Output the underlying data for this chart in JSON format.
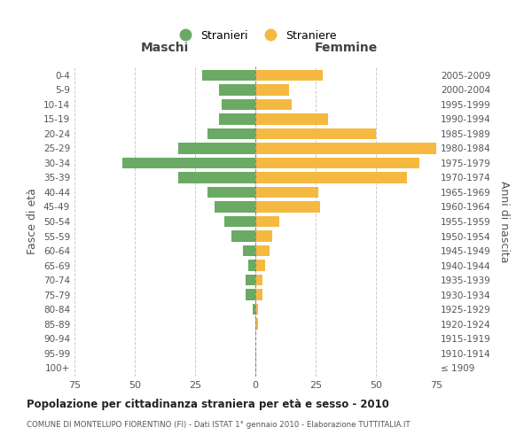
{
  "age_groups": [
    "100+",
    "95-99",
    "90-94",
    "85-89",
    "80-84",
    "75-79",
    "70-74",
    "65-69",
    "60-64",
    "55-59",
    "50-54",
    "45-49",
    "40-44",
    "35-39",
    "30-34",
    "25-29",
    "20-24",
    "15-19",
    "10-14",
    "5-9",
    "0-4"
  ],
  "birth_years": [
    "≤ 1909",
    "1910-1914",
    "1915-1919",
    "1920-1924",
    "1925-1929",
    "1930-1934",
    "1935-1939",
    "1940-1944",
    "1945-1949",
    "1950-1954",
    "1955-1959",
    "1960-1964",
    "1965-1969",
    "1970-1974",
    "1975-1979",
    "1980-1984",
    "1985-1989",
    "1990-1994",
    "1995-1999",
    "2000-2004",
    "2005-2009"
  ],
  "maschi": [
    0,
    0,
    0,
    0,
    1,
    4,
    4,
    3,
    5,
    10,
    13,
    17,
    20,
    32,
    55,
    32,
    20,
    15,
    14,
    15,
    22
  ],
  "femmine": [
    0,
    0,
    0,
    1,
    1,
    3,
    3,
    4,
    6,
    7,
    10,
    27,
    26,
    63,
    68,
    75,
    50,
    30,
    15,
    14,
    28
  ],
  "male_color": "#6aaa64",
  "female_color": "#f5b942",
  "background_color": "#ffffff",
  "grid_color": "#cccccc",
  "title": "Popolazione per cittadinanza straniera per età e sesso - 2010",
  "subtitle": "COMUNE DI MONTELUPO FIORENTINO (FI) - Dati ISTAT 1° gennaio 2010 - Elaborazione TUTTITALIA.IT",
  "ylabel_left": "Fasce di età",
  "ylabel_right": "Anni di nascita",
  "xlabel_left": "Maschi",
  "xlabel_right": "Femmine",
  "xlim": 75,
  "legend_stranieri": "Stranieri",
  "legend_straniere": "Straniere"
}
